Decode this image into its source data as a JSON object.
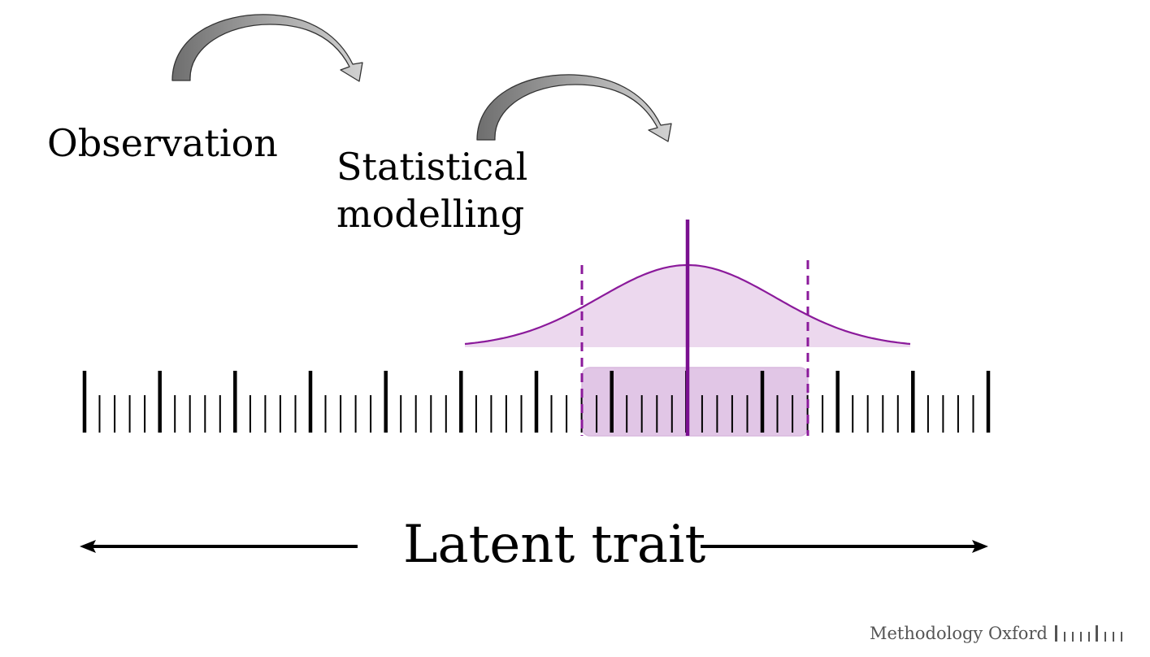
{
  "labels": {
    "observation": "Observation",
    "statistical_modelling": "Statistical\nmodelling",
    "latent_trait": "Latent trait"
  },
  "footer": {
    "brand": "Methodology Oxford"
  },
  "colors": {
    "accent_purple": "#8b1a9b",
    "distribution_fill": "#ecd8ee",
    "interval_fill": "#e0c3e5",
    "arrow_dark": "#707070",
    "arrow_light": "#c8c8c8"
  },
  "icons": {
    "process_arrows": "curved-arrow-icon",
    "direction_arrows": "double-headed-arrow-icon",
    "brand_mark": "ruler-logo-icon"
  }
}
